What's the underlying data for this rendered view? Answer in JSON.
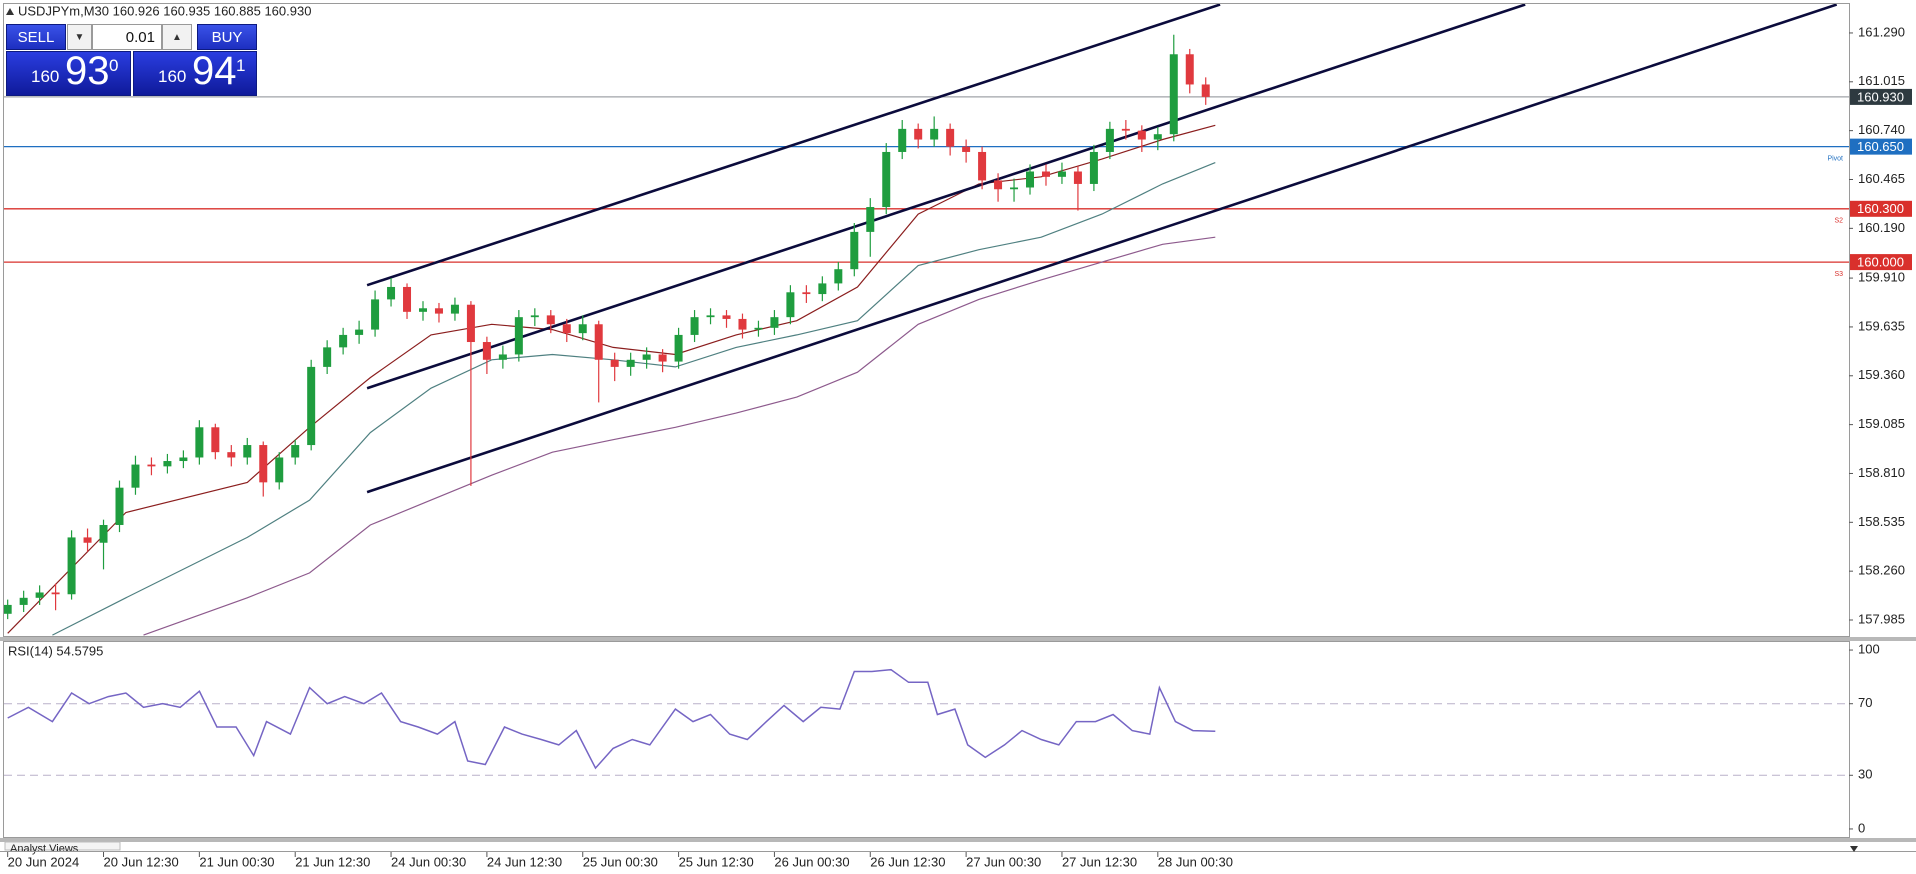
{
  "header": "USDJPYm,M30  160.926 160.935 160.885 160.930",
  "trade_panel": {
    "sell": "SELL",
    "buy": "BUY",
    "lot": "0.01",
    "bid": {
      "big": "160",
      "main": "93",
      "sup": "0"
    },
    "ask": {
      "big": "160",
      "main": "94",
      "sup": "1"
    }
  },
  "tab": "Analyst Views",
  "chart_data": [
    {
      "type": "candlestick",
      "up_color": "#1f9d3f",
      "down_color": "#e0393e",
      "x": [
        0,
        1,
        2,
        3,
        4,
        5,
        6,
        7,
        8,
        9,
        10,
        11,
        12,
        13,
        14,
        15,
        16,
        17,
        18,
        19,
        20,
        21,
        22,
        23,
        24,
        25,
        26,
        27,
        28,
        29,
        30,
        31,
        32,
        33,
        34,
        35,
        36,
        37,
        38,
        39,
        40,
        41,
        42,
        43,
        44,
        45,
        46,
        47,
        48,
        49,
        50,
        51,
        52,
        53,
        54,
        55,
        56,
        57,
        58,
        59,
        60,
        61,
        62,
        63,
        64,
        65,
        66,
        67,
        68,
        69,
        70,
        71,
        72,
        73,
        74,
        75
      ],
      "open": [
        158.02,
        158.07,
        158.11,
        158.14,
        158.13,
        158.45,
        158.42,
        158.52,
        158.73,
        158.86,
        158.85,
        158.88,
        158.9,
        159.07,
        158.93,
        158.9,
        158.97,
        158.76,
        158.9,
        158.97,
        159.41,
        159.52,
        159.59,
        159.62,
        159.79,
        159.86,
        159.72,
        159.74,
        159.71,
        159.76,
        159.55,
        159.45,
        159.48,
        159.69,
        159.7,
        159.65,
        159.6,
        159.65,
        159.45,
        159.41,
        159.45,
        159.48,
        159.44,
        159.59,
        159.69,
        159.7,
        159.68,
        159.62,
        159.63,
        159.69,
        159.83,
        159.82,
        159.88,
        159.96,
        160.17,
        160.31,
        160.62,
        160.75,
        160.69,
        160.75,
        160.65,
        160.62,
        160.46,
        160.41,
        160.42,
        160.51,
        160.48,
        160.51,
        160.44,
        160.62,
        160.75,
        160.74,
        160.69,
        160.72,
        161.17,
        161.0
      ],
      "high": [
        158.1,
        158.15,
        158.18,
        158.19,
        158.49,
        158.5,
        158.55,
        158.77,
        158.91,
        158.9,
        158.92,
        158.94,
        159.11,
        159.09,
        158.97,
        159.01,
        158.99,
        158.93,
        159.0,
        159.45,
        159.56,
        159.63,
        159.67,
        159.84,
        159.91,
        159.88,
        159.78,
        159.77,
        159.8,
        159.78,
        159.58,
        159.53,
        159.73,
        159.74,
        159.73,
        159.68,
        159.7,
        159.67,
        159.49,
        159.49,
        159.52,
        159.51,
        159.63,
        159.73,
        159.74,
        159.73,
        159.71,
        159.67,
        159.73,
        159.87,
        159.87,
        159.92,
        160.0,
        160.22,
        160.36,
        160.67,
        160.8,
        160.78,
        160.82,
        160.78,
        160.69,
        160.65,
        160.5,
        160.47,
        160.55,
        160.55,
        160.56,
        160.54,
        160.66,
        160.79,
        160.8,
        160.77,
        160.76,
        161.28,
        161.2,
        161.04
      ],
      "low": [
        157.99,
        158.03,
        158.07,
        158.04,
        158.1,
        158.37,
        158.27,
        158.48,
        158.69,
        158.8,
        158.81,
        158.84,
        158.86,
        158.89,
        158.85,
        158.86,
        158.68,
        158.72,
        158.86,
        158.94,
        159.37,
        159.48,
        159.54,
        159.58,
        159.75,
        159.68,
        159.67,
        159.66,
        159.67,
        158.74,
        159.37,
        159.4,
        159.44,
        159.64,
        159.6,
        159.55,
        159.56,
        159.21,
        159.33,
        159.36,
        159.4,
        159.38,
        159.4,
        159.55,
        159.65,
        159.63,
        159.57,
        159.58,
        159.59,
        159.65,
        159.77,
        159.78,
        159.84,
        159.92,
        160.03,
        160.27,
        160.58,
        160.64,
        160.65,
        160.6,
        160.56,
        160.41,
        160.34,
        160.34,
        160.38,
        160.43,
        160.44,
        160.29,
        160.4,
        160.58,
        160.69,
        160.62,
        160.63,
        160.68,
        160.95,
        160.885
      ],
      "close": [
        158.07,
        158.11,
        158.14,
        158.13,
        158.45,
        158.42,
        158.52,
        158.73,
        158.86,
        158.85,
        158.88,
        158.9,
        159.07,
        158.93,
        158.9,
        158.97,
        158.76,
        158.9,
        158.97,
        159.41,
        159.52,
        159.59,
        159.62,
        159.79,
        159.86,
        159.72,
        159.74,
        159.71,
        159.76,
        159.55,
        159.45,
        159.48,
        159.69,
        159.7,
        159.65,
        159.6,
        159.65,
        159.45,
        159.41,
        159.45,
        159.48,
        159.44,
        159.59,
        159.69,
        159.7,
        159.68,
        159.62,
        159.63,
        159.69,
        159.83,
        159.82,
        159.88,
        159.96,
        160.17,
        160.31,
        160.62,
        160.75,
        160.69,
        160.75,
        160.65,
        160.62,
        160.46,
        160.41,
        160.42,
        160.51,
        160.48,
        160.51,
        160.44,
        160.62,
        160.75,
        160.74,
        160.69,
        160.72,
        161.17,
        161.0,
        160.93
      ],
      "series": [
        {
          "color": "#8b1e1e",
          "x": [
            0,
            7.4,
            15,
            18.9,
            22.7,
            26.5,
            30.3,
            34.1,
            37.9,
            41.8,
            45.6,
            49.4,
            53.2,
            57,
            60.8,
            64.7,
            68.5,
            72.3,
            75.6
          ],
          "values": [
            157.91,
            158.59,
            158.76,
            159.07,
            159.35,
            159.59,
            159.65,
            159.62,
            159.52,
            159.48,
            159.59,
            159.67,
            159.86,
            160.27,
            160.44,
            160.48,
            160.58,
            160.69,
            160.77
          ]
        },
        {
          "color": "#4f8081",
          "x": [
            2.8,
            7.4,
            15,
            18.9,
            22.7,
            26.5,
            30.3,
            34.1,
            37.9,
            41.8,
            45.6,
            49.4,
            53.2,
            57,
            60.8,
            64.7,
            68.5,
            72.3,
            75.6
          ],
          "values": [
            157.9,
            158.11,
            158.45,
            158.66,
            159.04,
            159.29,
            159.45,
            159.48,
            159.45,
            159.41,
            159.52,
            159.59,
            159.67,
            159.98,
            160.07,
            160.14,
            160.27,
            160.44,
            160.56
          ]
        },
        {
          "color": "#8d5a8d",
          "x": [
            8.5,
            15,
            18.9,
            22.7,
            26.5,
            30.3,
            34.1,
            37.9,
            41.8,
            45.6,
            49.4,
            53.2,
            57,
            60.8,
            64.7,
            68.5,
            72.3,
            75.6
          ],
          "values": [
            157.9,
            158.11,
            158.25,
            158.52,
            158.66,
            158.8,
            158.93,
            159.0,
            159.07,
            159.15,
            159.24,
            159.38,
            159.65,
            159.79,
            159.9,
            160.0,
            160.1,
            160.14
          ]
        }
      ],
      "trendlines": [
        {
          "color": "#0b0b3c",
          "x": [
            22.5,
            75.9
          ],
          "values": [
            159.87,
            161.45
          ]
        },
        {
          "color": "#0b0b3c",
          "x": [
            22.5,
            95.0
          ],
          "values": [
            159.29,
            161.45
          ]
        },
        {
          "color": "#0b0b3c",
          "x": [
            22.5,
            114.5
          ],
          "values": [
            158.705,
            161.45
          ]
        }
      ],
      "levels": [
        {
          "value": 160.93,
          "label": "160.930",
          "color": "#a0a4a8",
          "label_color": "#2e3a40"
        },
        {
          "value": 160.65,
          "label": "160.650",
          "color": "#1f6fc1",
          "label_color": "#1f6fc1",
          "tag": "Pivot"
        },
        {
          "value": 160.3,
          "label": "160.300",
          "color": "#d9302c",
          "label_color": "#d9302c",
          "tag": "S2"
        },
        {
          "value": 160,
          "label": "160.000",
          "color": "#d9302c",
          "label_color": "#d9302c",
          "tag": "S3"
        }
      ],
      "xlim": [
        -0.23,
        115.27
      ],
      "ylim": [
        157.895,
        161.453
      ],
      "yticks": [
        157.985,
        {
          "value": 158.26,
          "label": "158.260"
        },
        158.535,
        {
          "value": 158.81,
          "label": "158.810"
        },
        159.085,
        {
          "value": 159.36,
          "label": "159.360"
        },
        159.635,
        {
          "value": 159.91,
          "label": "159.910"
        },
        {
          "value": 160.19,
          "label": "160.190"
        },
        160.465,
        {
          "value": 160.74,
          "label": "160.740"
        },
        161.015,
        {
          "value": 161.29,
          "label": "161.290"
        }
      ],
      "xticks": [
        {
          "value": 0,
          "label": "20 Jun 2024"
        },
        {
          "value": 6,
          "label": "20 Jun 12:30"
        },
        {
          "value": 12,
          "label": "21 Jun 00:30"
        },
        {
          "value": 18,
          "label": "21 Jun 12:30"
        },
        {
          "value": 24,
          "label": "24 Jun 00:30"
        },
        {
          "value": 30,
          "label": "24 Jun 12:30"
        },
        {
          "value": 36,
          "label": "25 Jun 00:30"
        },
        {
          "value": 42,
          "label": "25 Jun 12:30"
        },
        {
          "value": 48,
          "label": "26 Jun 00:30"
        },
        {
          "value": 54,
          "label": "26 Jun 12:30"
        },
        {
          "value": 60,
          "label": "27 Jun 00:30"
        },
        {
          "value": 66,
          "label": "27 Jun 12:30"
        },
        {
          "value": 72,
          "label": "28 Jun 00:30"
        }
      ]
    },
    {
      "type": "line",
      "title": "RSI(14) 54.5795",
      "series": [
        {
          "color": "#7565c4",
          "x": [
            0,
            1.3,
            2.8,
            4,
            5.1,
            6.3,
            7.4,
            8.5,
            9.7,
            10.8,
            12,
            13.1,
            14.3,
            15.4,
            16.2,
            17.7,
            18.9,
            20,
            21.1,
            22.3,
            23.4,
            24.6,
            25.7,
            26.9,
            28,
            28.8,
            29.9,
            31.1,
            32.2,
            33.4,
            34.5,
            35.6,
            36.8,
            37.9,
            39.1,
            40.2,
            41.8,
            42.9,
            44,
            45.2,
            46.3,
            47.5,
            48.6,
            49.8,
            50.9,
            52.1,
            53,
            54.1,
            55.3,
            56.4,
            57.6,
            58.2,
            59.3,
            60.1,
            61.2,
            62.4,
            63.5,
            64.7,
            65.8,
            66.9,
            68.1,
            69.2,
            70.4,
            71.5,
            72.1,
            73.1,
            74.2,
            75.6
          ],
          "values": [
            62,
            68,
            60,
            76,
            70,
            74,
            76,
            68,
            70,
            68,
            77,
            57,
            57,
            41,
            60,
            53,
            79,
            70,
            74,
            70,
            76,
            60,
            57,
            53,
            60,
            38,
            36,
            57,
            53,
            50,
            47,
            55,
            34,
            45,
            50,
            47,
            67,
            60,
            64,
            53,
            50,
            60,
            69,
            60,
            68,
            67,
            88,
            88,
            89,
            82,
            82,
            64,
            67,
            47,
            40,
            47,
            55,
            50,
            47,
            60,
            60,
            64,
            55,
            53,
            79,
            60,
            55,
            54.5795
          ]
        }
      ],
      "levels": [
        70,
        30
      ],
      "xlim": [
        -0.23,
        115.27
      ],
      "ylim": [
        -4.5,
        104.5
      ],
      "yticks": [
        0,
        30,
        70,
        100
      ]
    }
  ]
}
